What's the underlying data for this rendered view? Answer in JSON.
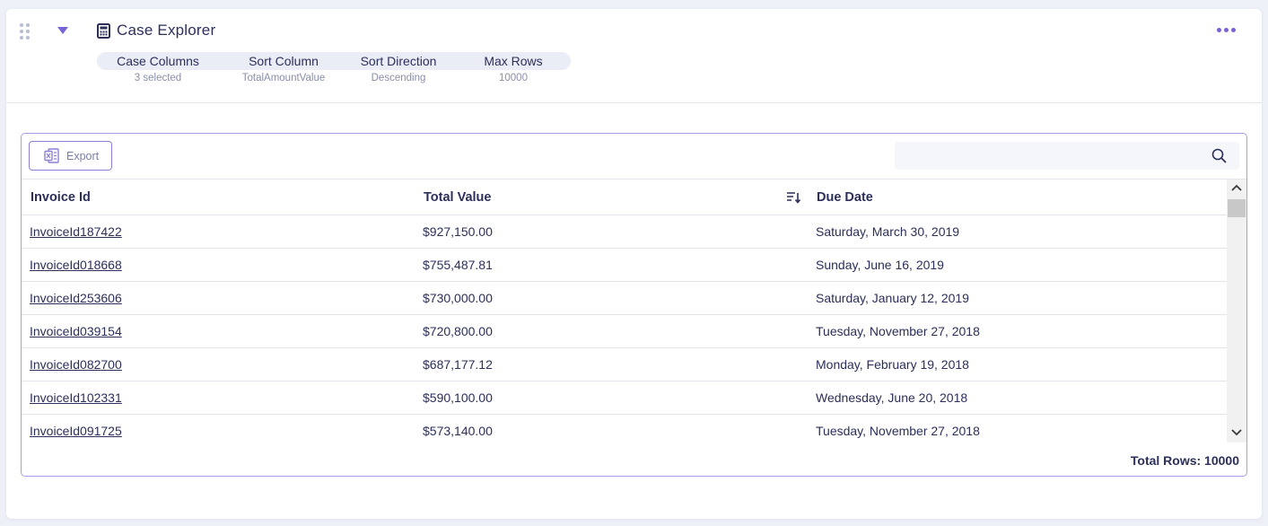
{
  "header": {
    "title": "Case Explorer",
    "title_icon": "calculator-icon",
    "more_icon": "more-horizontal-icon",
    "accent_color": "#7a63d6"
  },
  "settings": [
    {
      "label": "Case Columns",
      "value": "3 selected"
    },
    {
      "label": "Sort Column",
      "value": "TotalAmountValue"
    },
    {
      "label": "Sort Direction",
      "value": "Descending"
    },
    {
      "label": "Max Rows",
      "value": "10000"
    }
  ],
  "toolbar": {
    "export_label": "Export",
    "export_icon": "excel-icon",
    "search_placeholder": "",
    "search_icon": "search-icon"
  },
  "table": {
    "columns": [
      "Invoice Id",
      "Total Value",
      "Due Date"
    ],
    "sort_icon": "sort-descending-icon",
    "rows": [
      [
        "InvoiceId187422",
        "$927,150.00",
        "Saturday, March 30, 2019"
      ],
      [
        "InvoiceId018668",
        "$755,487.81",
        "Sunday, June 16, 2019"
      ],
      [
        "InvoiceId253606",
        "$730,000.00",
        "Saturday, January 12, 2019"
      ],
      [
        "InvoiceId039154",
        "$720,800.00",
        "Tuesday, November 27, 2018"
      ],
      [
        "InvoiceId082700",
        "$687,177.12",
        "Monday, February 19, 2018"
      ],
      [
        "InvoiceId102331",
        "$590,100.00",
        "Wednesday, June 20, 2018"
      ],
      [
        "InvoiceId091725",
        "$573,140.00",
        "Tuesday, November 27, 2018"
      ]
    ]
  },
  "footer": {
    "total_rows": "Total Rows: 10000"
  }
}
